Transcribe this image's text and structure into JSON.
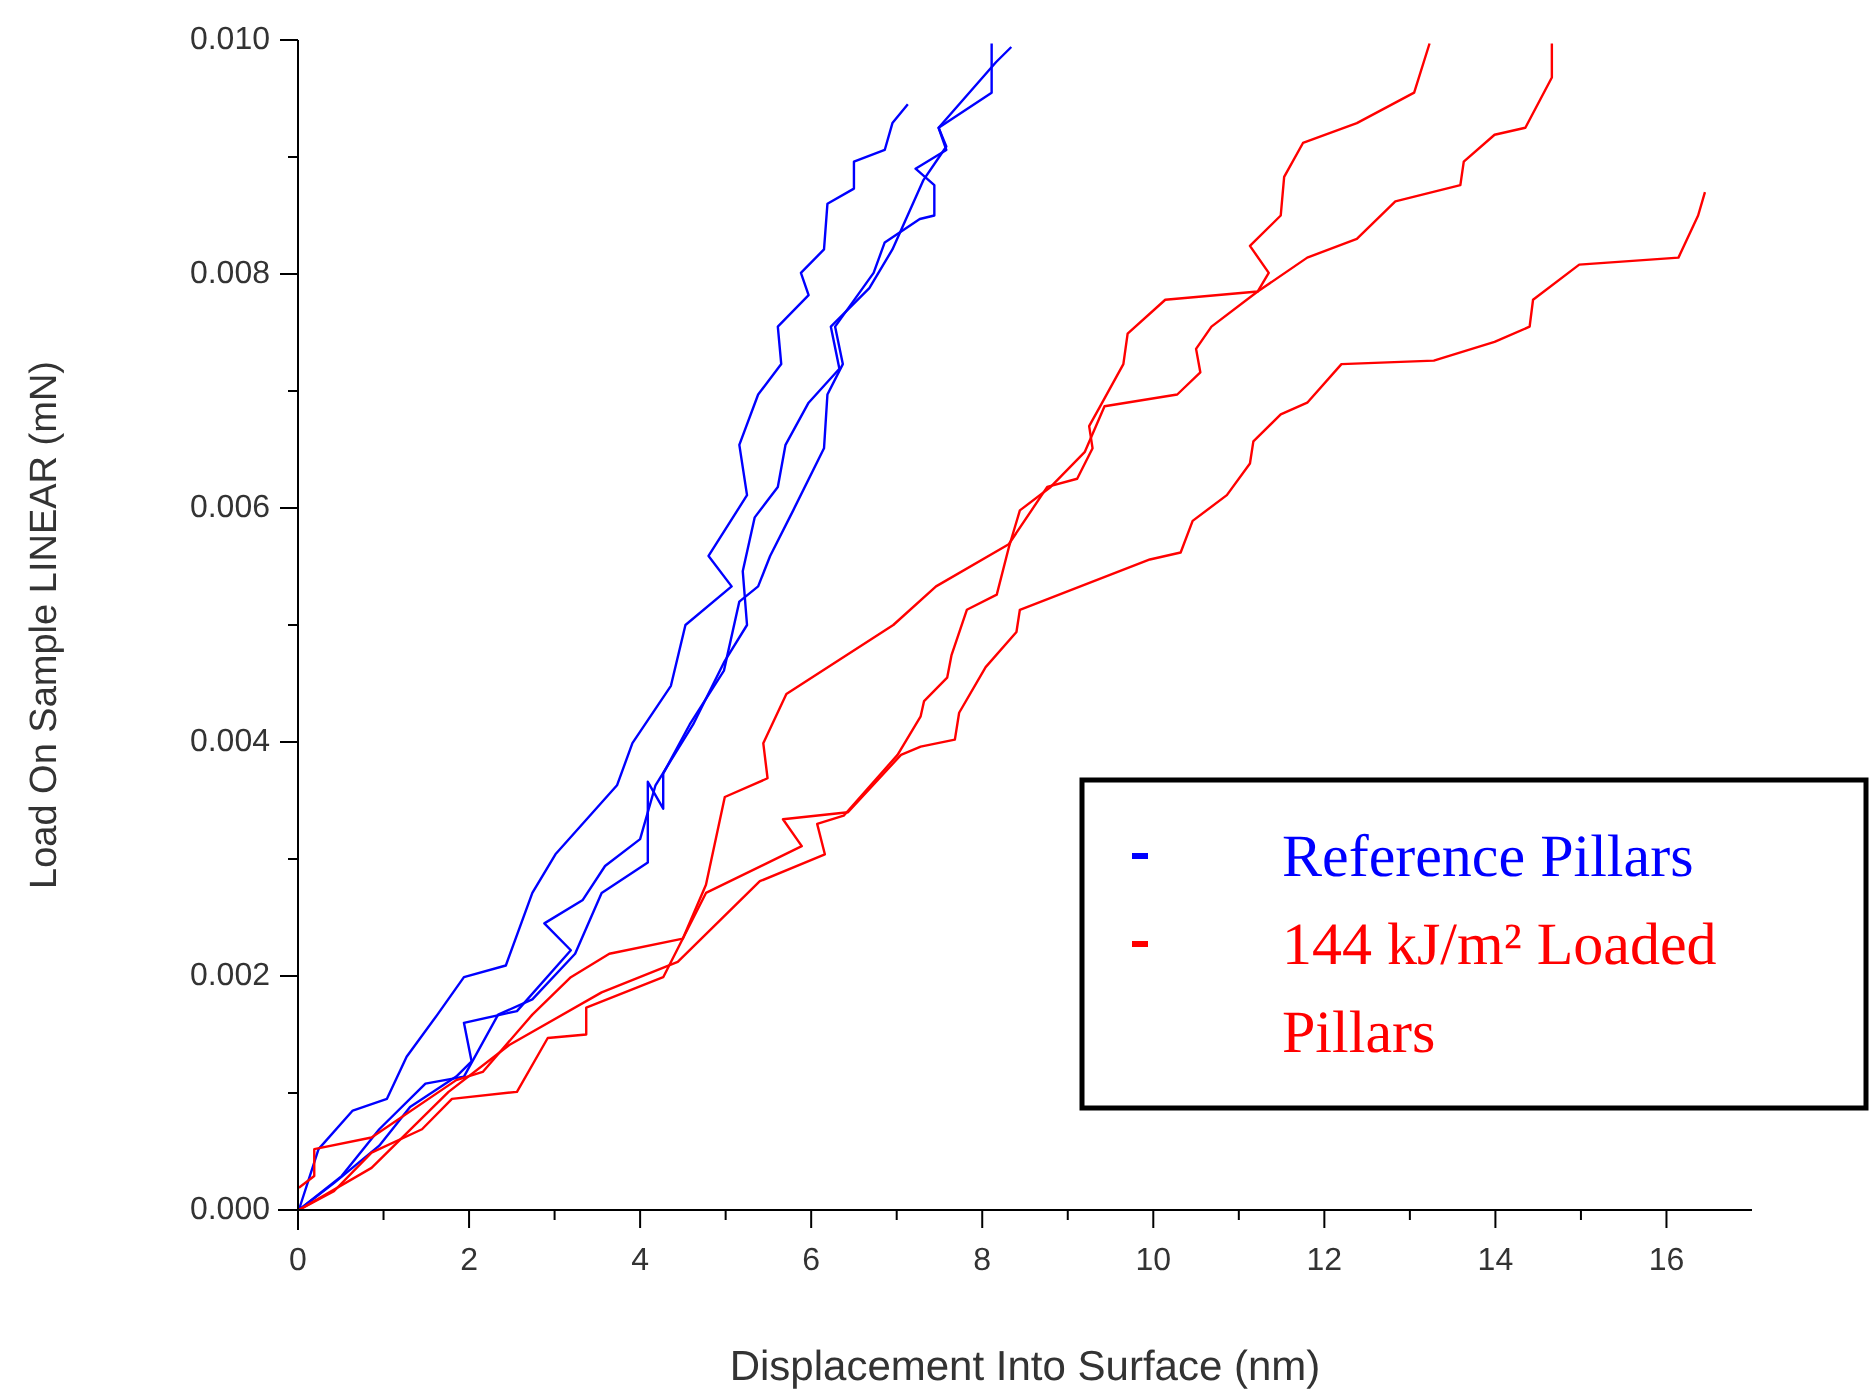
{
  "chart_data": {
    "type": "line",
    "xlabel": "Displacement Into Surface (nm)",
    "ylabel": "Load On Sample LINEAR (mN)",
    "xlim": [
      0,
      17
    ],
    "ylim": [
      0,
      0.01
    ],
    "xticks": [
      0,
      {
        "value": 1,
        "label": null
      },
      2,
      {
        "value": 3,
        "label": null
      },
      4,
      {
        "value": 5,
        "label": null
      },
      6,
      {
        "value": 7,
        "label": null
      },
      8,
      {
        "value": 9,
        "label": null
      },
      10,
      {
        "value": 11,
        "label": null
      },
      12,
      {
        "value": 13,
        "label": null
      },
      14,
      {
        "value": 15,
        "label": null
      },
      16
    ],
    "yticks": [
      {
        "value": 0,
        "label": "0.000"
      },
      {
        "value": 0.001,
        "label": null
      },
      {
        "value": 0.002,
        "label": "0.002"
      },
      {
        "value": 0.003,
        "label": null
      },
      {
        "value": 0.004,
        "label": "0.004"
      },
      {
        "value": 0.005,
        "label": null
      },
      {
        "value": 0.006,
        "label": "0.006"
      },
      {
        "value": 0.007,
        "label": null
      },
      {
        "value": 0.008,
        "label": "0.008"
      },
      {
        "value": 0.009,
        "label": null
      },
      {
        "value": 0.01,
        "label": "0.010"
      }
    ],
    "grid": false,
    "legend": "bottom right",
    "marker": "none",
    "line_style": "solid",
    "series": [
      {
        "name": "Reference Pillars",
        "color": "#0000ff",
        "x": [
          0.01,
          0.24,
          0.64,
          1.04,
          1.27,
          1.63,
          1.94,
          2.43,
          2.74,
          3.01,
          3.73,
          3.91,
          4.36,
          4.53,
          5.07,
          4.8,
          5.25,
          5.16,
          5.38,
          5.65,
          5.61,
          5.97,
          5.88,
          6.15,
          6.19,
          6.5,
          6.5,
          6.86,
          6.95,
          7.13
        ],
        "values": [
          0,
          0.00052,
          0.00085,
          0.00095,
          0.00131,
          0.00167,
          0.00199,
          0.00209,
          0.00271,
          0.00304,
          0.00363,
          0.00399,
          0.00448,
          0.005,
          0.00533,
          0.00559,
          0.00611,
          0.00654,
          0.00697,
          0.00723,
          0.00755,
          0.00782,
          0.00801,
          0.00821,
          0.0086,
          0.00873,
          0.00896,
          0.00906,
          0.00929,
          0.00945
        ]
      },
      {
        "color": "#0000ff",
        "x": [
          0.01,
          0.42,
          0.95,
          1.31,
          1.85,
          2.03,
          1.94,
          2.56,
          3.19,
          2.88,
          3.33,
          3.59,
          4.0,
          4.18,
          4.4,
          4.62,
          4.98,
          5.25,
          5.2,
          5.34,
          5.61,
          5.7,
          5.97,
          6.33,
          6.23,
          6.68,
          6.95,
          7.31,
          7.58,
          7.49,
          8.16,
          8.34
        ],
        "values": [
          0,
          0.00023,
          0.00055,
          0.00088,
          0.00114,
          0.00127,
          0.0016,
          0.0017,
          0.00222,
          0.00245,
          0.00265,
          0.00294,
          0.00317,
          0.00363,
          0.00389,
          0.00415,
          0.00468,
          0.005,
          0.00546,
          0.00592,
          0.00618,
          0.00654,
          0.0069,
          0.00719,
          0.00755,
          0.00788,
          0.00821,
          0.0088,
          0.00909,
          0.00925,
          0.00981,
          0.00994
        ]
      },
      {
        "color": "#0000ff",
        "x": [
          0.01,
          0.51,
          0.95,
          1.49,
          1.94,
          2.34,
          2.74,
          3.24,
          3.55,
          4.09,
          4.09,
          4.27,
          4.27,
          4.58,
          4.98,
          5.16,
          5.38,
          5.52,
          5.79,
          6.15,
          6.19,
          6.37,
          6.28,
          6.73,
          6.86,
          7.27,
          7.44,
          7.44,
          7.22,
          7.58,
          7.49,
          8.11,
          8.11
        ],
        "values": [
          0,
          0.00029,
          0.00069,
          0.00108,
          0.00114,
          0.00167,
          0.0018,
          0.00219,
          0.00271,
          0.00297,
          0.00366,
          0.00343,
          0.00373,
          0.00415,
          0.00461,
          0.0052,
          0.00533,
          0.00559,
          0.00598,
          0.00651,
          0.00697,
          0.00723,
          0.00755,
          0.00801,
          0.00827,
          0.00847,
          0.0085,
          0.00876,
          0.0089,
          0.00906,
          0.00925,
          0.00955,
          0.00997
        ]
      },
      {
        "name": "144 kJ/m² Loaded Pillars",
        "color": "#ff0000",
        "x": [
          0.01,
          0.19,
          0.19,
          0.86,
          1.85,
          2.16,
          2.74,
          3.19,
          3.64,
          4.5,
          4.77,
          4.99,
          5.49,
          5.44,
          5.71,
          6.96,
          7.46,
          8.31,
          8.76,
          9.11,
          9.29,
          9.25,
          9.38,
          9.65,
          9.7,
          10.14,
          11.22,
          11.35,
          11.13,
          11.49,
          11.53,
          11.75,
          12.38,
          13.05,
          13.23
        ],
        "values": [
          0.00019,
          0.00029,
          0.00052,
          0.00062,
          0.00111,
          0.00118,
          0.00167,
          0.00199,
          0.00219,
          0.00232,
          0.00278,
          0.00353,
          0.00369,
          0.00399,
          0.00441,
          0.005,
          0.00533,
          0.00569,
          0.00618,
          0.00625,
          0.00651,
          0.0067,
          0.00687,
          0.00723,
          0.00749,
          0.00778,
          0.00785,
          0.00801,
          0.00824,
          0.0085,
          0.00883,
          0.00912,
          0.00929,
          0.00955,
          0.00997
        ]
      },
      {
        "color": "#ff0000",
        "x": [
          0.01,
          0.86,
          1.76,
          2.47,
          3.55,
          4.44,
          5.4,
          6.16,
          6.07,
          6.38,
          7.01,
          7.28,
          7.32,
          7.59,
          7.64,
          7.82,
          8.17,
          8.31,
          8.44,
          8.8,
          9.2,
          9.43,
          10.28,
          10.55,
          10.5,
          10.68,
          11.22,
          11.8,
          12.38,
          12.83,
          13.59,
          13.63,
          13.99,
          14.35,
          14.66,
          14.66
        ],
        "values": [
          0,
          0.00036,
          0.00101,
          0.00141,
          0.00186,
          0.00212,
          0.00281,
          0.00304,
          0.0033,
          0.00337,
          0.00389,
          0.00422,
          0.00435,
          0.00455,
          0.00474,
          0.00513,
          0.00526,
          0.00566,
          0.00598,
          0.00618,
          0.00648,
          0.00687,
          0.00697,
          0.00716,
          0.00736,
          0.00755,
          0.00785,
          0.00814,
          0.0083,
          0.00862,
          0.00876,
          0.00896,
          0.00919,
          0.00925,
          0.00968,
          0.00997
        ]
      },
      {
        "color": "#ff0000",
        "x": [
          0.01,
          0.42,
          0.86,
          1.45,
          1.8,
          2.56,
          2.92,
          3.37,
          3.37,
          4.27,
          4.77,
          5.89,
          5.67,
          6.43,
          7.05,
          7.28,
          7.68,
          7.73,
          8.04,
          8.4,
          8.44,
          9.96,
          10.32,
          10.46,
          10.86,
          11.13,
          11.17,
          11.49,
          11.8,
          12.2,
          13.28,
          13.99,
          14.4,
          14.44,
          14.98,
          16.14,
          16.37,
          16.45
        ],
        "values": [
          0,
          0.00016,
          0.00049,
          0.00069,
          0.00095,
          0.00101,
          0.00147,
          0.0015,
          0.00173,
          0.00199,
          0.00271,
          0.00311,
          0.00334,
          0.0034,
          0.00389,
          0.00396,
          0.00402,
          0.00425,
          0.00464,
          0.00494,
          0.00513,
          0.00556,
          0.00562,
          0.00589,
          0.00611,
          0.00638,
          0.00657,
          0.0068,
          0.0069,
          0.00723,
          0.00726,
          0.00742,
          0.00755,
          0.00778,
          0.00808,
          0.00814,
          0.0085,
          0.0087
        ]
      }
    ]
  }
}
